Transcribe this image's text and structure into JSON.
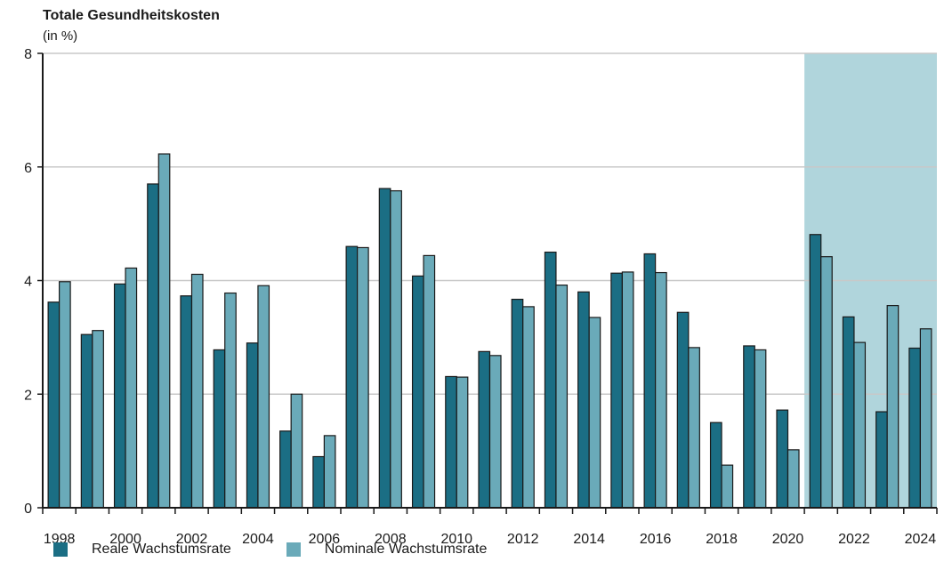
{
  "chart_data": {
    "type": "bar",
    "title": "Totale Gesundheitskosten",
    "subtitle": "(in %)",
    "xlabel": "",
    "ylabel": "",
    "ylim": [
      0,
      8
    ],
    "yticks": [
      "0",
      "2",
      "4",
      "6",
      "8"
    ],
    "grid": true,
    "legend_position": "bottom-left",
    "highlight_region": {
      "from": 2021,
      "to": 2024
    },
    "categories": [
      1998,
      1999,
      2000,
      2001,
      2002,
      2003,
      2004,
      2005,
      2006,
      2007,
      2008,
      2009,
      2010,
      2011,
      2012,
      2013,
      2014,
      2015,
      2016,
      2017,
      2018,
      2019,
      2020,
      2021,
      2022,
      2023,
      2024
    ],
    "x_tick_labels": [
      "1998",
      "2000",
      "2002",
      "2004",
      "2006",
      "2008",
      "2010",
      "2012",
      "2014",
      "2016",
      "2018",
      "2020",
      "2022",
      "2024"
    ],
    "series": [
      {
        "name": "Reale Wachstumsrate",
        "color": "#1b6e84",
        "values": [
          3.62,
          3.05,
          3.94,
          5.7,
          3.73,
          2.78,
          2.9,
          1.35,
          0.9,
          4.6,
          5.62,
          4.08,
          2.31,
          2.75,
          3.67,
          4.5,
          3.8,
          4.13,
          4.47,
          3.44,
          1.5,
          2.85,
          1.72,
          4.81,
          3.36,
          1.69,
          2.81
        ]
      },
      {
        "name": "Nominale Wachstumsrate",
        "color": "#6aaab9",
        "values": [
          3.98,
          3.12,
          4.22,
          6.23,
          4.11,
          3.78,
          3.91,
          2.0,
          1.27,
          4.58,
          5.58,
          4.44,
          2.3,
          2.68,
          3.54,
          3.92,
          3.35,
          4.15,
          4.14,
          2.82,
          0.75,
          2.78,
          1.02,
          4.42,
          2.91,
          3.56,
          3.15
        ]
      }
    ],
    "colors": {
      "highlight": "#b0d5dc",
      "grid": "#c8c8c8",
      "axis": "#1a1a1a",
      "bar_stroke": "#1a1a1a"
    }
  }
}
